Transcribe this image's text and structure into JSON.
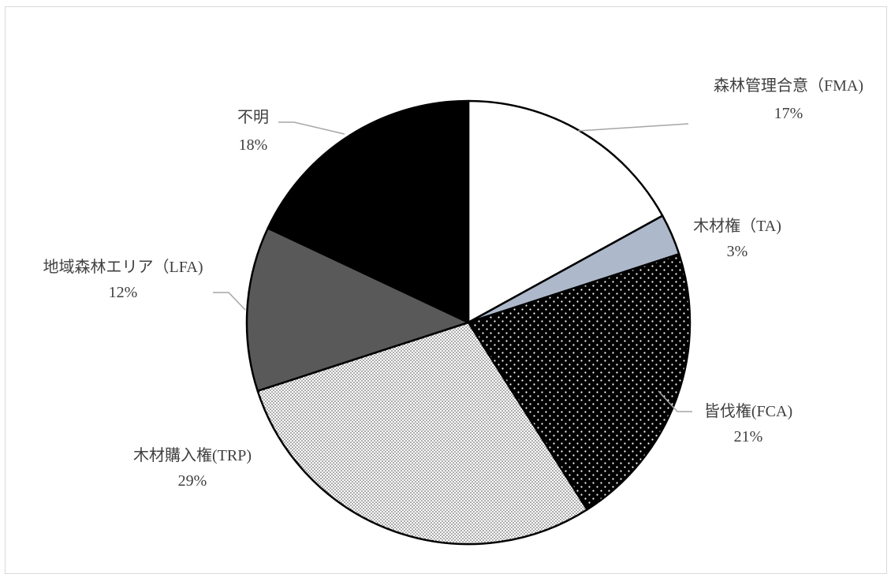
{
  "chart_data": {
    "type": "pie",
    "title": "",
    "start_angle_deg": 0,
    "direction": "clockwise",
    "slices": [
      {
        "name": "森林管理合意（FMA)",
        "value": 17,
        "value_label": "17%",
        "color": "#ffffff",
        "pattern": "none"
      },
      {
        "name": "木材権（TA)",
        "value": 3,
        "value_label": "3%",
        "color": "#adb9ca",
        "pattern": "none"
      },
      {
        "name": "皆伐権(FCA)",
        "value": 21,
        "value_label": "21%",
        "color": "#000000",
        "pattern": "sparse-white-dots"
      },
      {
        "name": "木材購入権(TRP)",
        "value": 29,
        "value_label": "29%",
        "color": "#ffffff",
        "pattern": "dense-dark-dots"
      },
      {
        "name": "地域森林エリア（LFA)",
        "value": 12,
        "value_label": "12%",
        "color": "#595959",
        "pattern": "none"
      },
      {
        "name": "不明",
        "value": 18,
        "value_label": "18%",
        "color": "#000000",
        "pattern": "none"
      }
    ],
    "legend": "none",
    "data_labels": "outside-with-leader-lines",
    "leader_line_color": "#a6a6a6"
  }
}
